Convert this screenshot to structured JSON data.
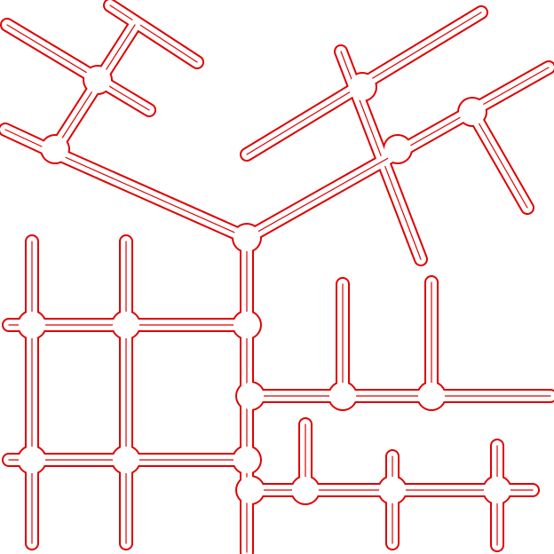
{
  "diagram": {
    "kind": "road-network-outline",
    "background_color": "#ffffff",
    "line_color": "#e00000",
    "road_count": 29,
    "junction_count": 19,
    "text_labels": []
  }
}
